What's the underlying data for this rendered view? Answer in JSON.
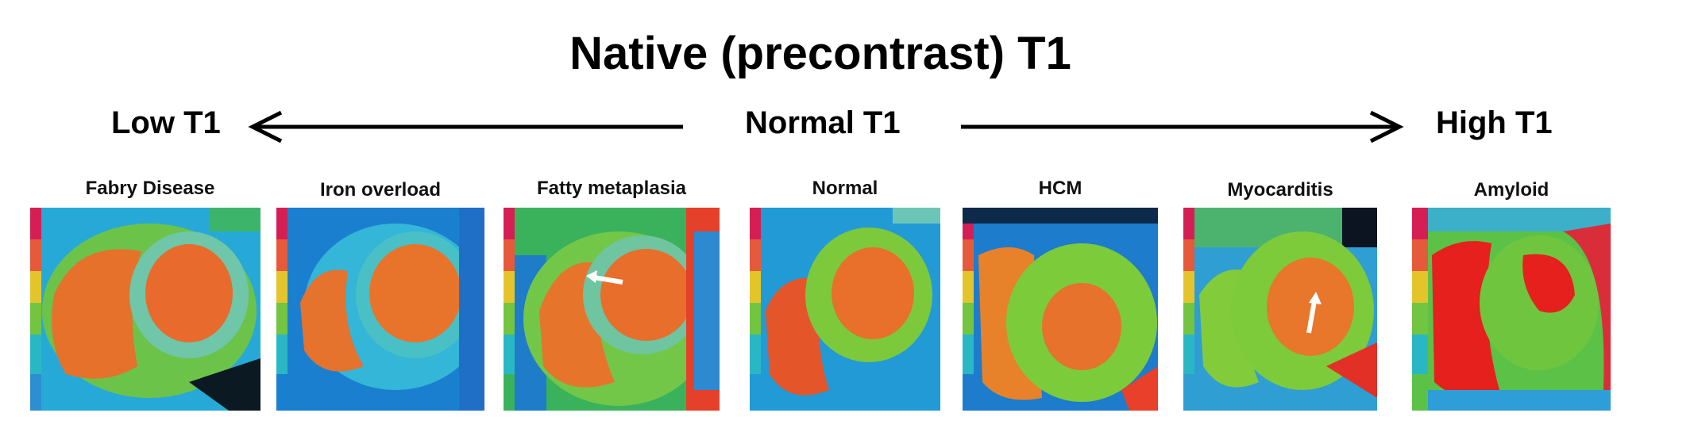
{
  "title": "Native (precontrast) T1",
  "scale": {
    "low": "Low T1",
    "normal": "Normal T1",
    "high": "High T1"
  },
  "panels": [
    {
      "label": "Fabry Disease",
      "icon": "t1-map-image"
    },
    {
      "label": "Iron overload",
      "icon": "t1-map-image"
    },
    {
      "label": "Fatty metaplasia",
      "icon": "t1-map-image",
      "marker": "arrow"
    },
    {
      "label": "Normal",
      "icon": "t1-map-image"
    },
    {
      "label": "HCM",
      "icon": "t1-map-image"
    },
    {
      "label": "Myocarditis",
      "icon": "t1-map-image",
      "marker": "arrow"
    },
    {
      "label": "Amyloid",
      "icon": "t1-map-image"
    }
  ],
  "colors": {
    "text": "#000000",
    "blood_pool": "#e8541c",
    "myocardium": "#7ccb3a",
    "background_tissue": "#1f9bd6",
    "high_t1": "#e5201d"
  }
}
